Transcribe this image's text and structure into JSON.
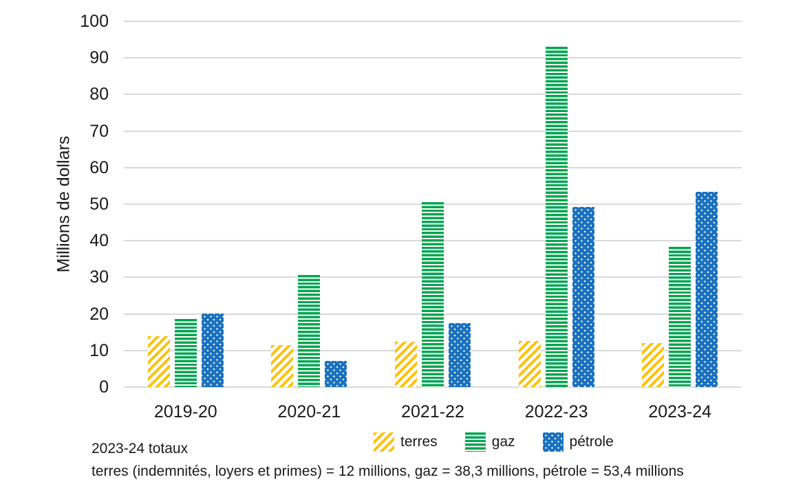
{
  "chart_data": {
    "type": "bar",
    "title": "",
    "categories": [
      "2019-20",
      "2020-21",
      "2021-22",
      "2022-23",
      "2023-24"
    ],
    "series": [
      {
        "name": "terres",
        "color": "#FFC000",
        "pattern": "diagonal-stripes",
        "values": [
          13.9,
          11.5,
          12.4,
          12.6,
          12.0
        ]
      },
      {
        "name": "gaz",
        "color": "#00A550",
        "pattern": "horizontal-stripes",
        "values": [
          18.6,
          30.6,
          50.6,
          93.0,
          38.3
        ]
      },
      {
        "name": "pétrole",
        "color": "#1B72BE",
        "pattern": "dots",
        "values": [
          20.2,
          7.1,
          17.5,
          49.3,
          53.4
        ]
      }
    ],
    "xlabel": "",
    "ylabel": "Millions de dollars",
    "ylim": [
      0,
      100
    ],
    "yticks": [
      0,
      10,
      20,
      30,
      40,
      50,
      60,
      70,
      80,
      90,
      100
    ],
    "grid": "horizontal",
    "gridline_color": "#D9D9D9",
    "legend_position": "bottom"
  },
  "footnote": {
    "line1": "2023-24 totaux",
    "line2": "terres (indemnités, loyers et primes) = 12 millions, gaz = 38,3 millions, pétrole = 53,4 millions"
  }
}
